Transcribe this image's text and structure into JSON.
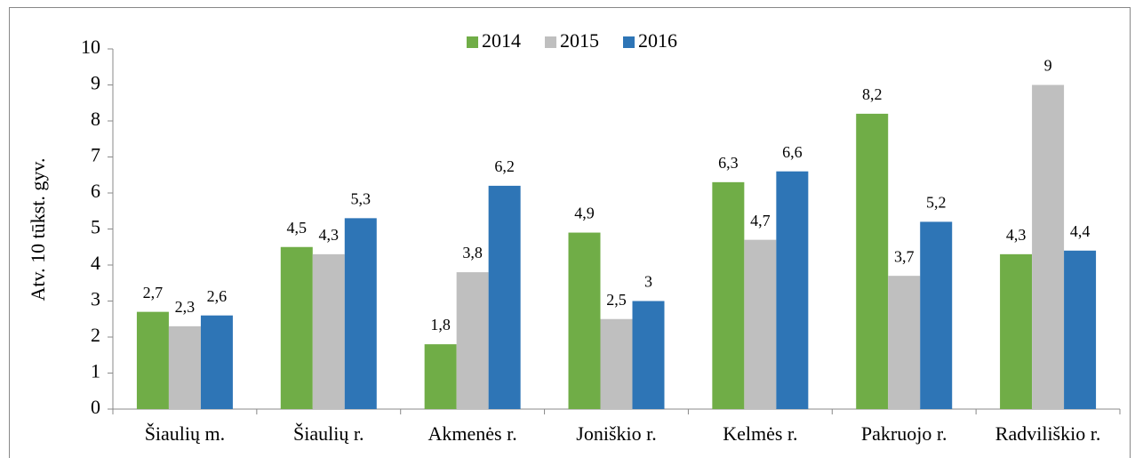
{
  "chart_data": {
    "type": "bar",
    "y_label": "Atv. 10 tūkst. gyv.",
    "categories": [
      "Šiaulių m.",
      "Šiaulių r.",
      "Akmenės r.",
      "Joniškio r.",
      "Kelmės r.",
      "Pakruojo r.",
      "Radviliškio r."
    ],
    "series": [
      {
        "name": "2014",
        "color": "#70ad47",
        "values": [
          2.7,
          4.5,
          1.8,
          4.9,
          6.3,
          8.2,
          4.3
        ],
        "value_labels": [
          "2,7",
          "4,5",
          "1,8",
          "4,9",
          "6,3",
          "8,2",
          "4,3"
        ]
      },
      {
        "name": "2015",
        "color": "#bfbfbf",
        "values": [
          2.3,
          4.3,
          3.8,
          2.5,
          4.7,
          3.7,
          9
        ],
        "value_labels": [
          "2,3",
          "4,3",
          "3,8",
          "2,5",
          "4,7",
          "3,7",
          "9"
        ]
      },
      {
        "name": "2016",
        "color": "#2e75b6",
        "values": [
          2.6,
          5.3,
          6.2,
          3,
          6.6,
          5.2,
          4.4
        ],
        "value_labels": [
          "2,6",
          "5,3",
          "6,2",
          "3",
          "6,6",
          "5,2",
          "4,4"
        ]
      }
    ],
    "ylim": [
      0,
      10
    ],
    "yticks": [
      0,
      1,
      2,
      3,
      4,
      5,
      6,
      7,
      8,
      9,
      10
    ],
    "legend": "top"
  }
}
